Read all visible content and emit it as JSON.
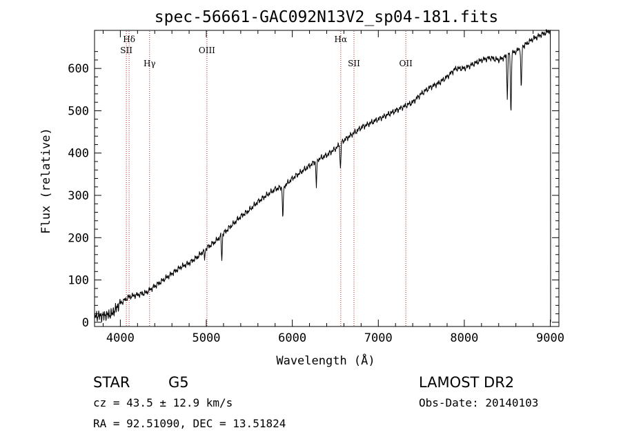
{
  "chart_data": {
    "type": "line",
    "title": "spec-56661-GAC092N13V2_sp04-181.fits",
    "xlabel": "Wavelength (Å)",
    "ylabel": "Flux (relative)",
    "xlim": [
      3700,
      9100
    ],
    "ylim": [
      -10,
      690
    ],
    "xticks": [
      4000,
      5000,
      6000,
      7000,
      8000,
      9000
    ],
    "yticks": [
      0,
      100,
      200,
      300,
      400,
      500,
      600
    ],
    "grid": false,
    "line_color": "#000000",
    "marker_color": "#b22222",
    "series": [
      {
        "x": [
          3700,
          3800,
          3900,
          4000,
          4100,
          4200,
          4300,
          4400,
          4500,
          4600,
          4700,
          4800,
          4900,
          5000,
          5100,
          5200,
          5300,
          5400,
          5500,
          5600,
          5700,
          5800,
          5900,
          6000,
          6100,
          6200,
          6300,
          6400,
          6500,
          6600,
          6700,
          6800,
          6900,
          7000,
          7100,
          7200,
          7300,
          7400,
          7500,
          7600,
          7700,
          7800,
          7900,
          8000,
          8100,
          8200,
          8300,
          8400,
          8500,
          8600,
          8700,
          8800,
          8900,
          9000
        ],
        "y": [
          15,
          15,
          20,
          45,
          60,
          65,
          70,
          85,
          100,
          115,
          130,
          140,
          155,
          175,
          190,
          210,
          230,
          250,
          265,
          285,
          300,
          315,
          320,
          340,
          355,
          370,
          385,
          395,
          410,
          430,
          445,
          460,
          470,
          480,
          490,
          500,
          510,
          520,
          540,
          555,
          565,
          580,
          600,
          600,
          610,
          620,
          625,
          620,
          630,
          640,
          655,
          670,
          680,
          690
        ]
      }
    ],
    "dips": [
      {
        "x": 4980,
        "y": 150
      },
      {
        "x": 5180,
        "y": 145
      },
      {
        "x": 5890,
        "y": 240
      },
      {
        "x": 6280,
        "y": 320
      },
      {
        "x": 6560,
        "y": 360
      },
      {
        "x": 8500,
        "y": 530
      },
      {
        "x": 8542,
        "y": 480
      },
      {
        "x": 8662,
        "y": 540
      }
    ],
    "spectral_lines": [
      {
        "label": "Hδ",
        "x": 4102,
        "tier": 0
      },
      {
        "label": "SII",
        "x": 4070,
        "tier": 1
      },
      {
        "label": "Hγ",
        "x": 4340,
        "tier": 2
      },
      {
        "label": "OIII",
        "x": 5007,
        "tier": 1
      },
      {
        "label": "Hα",
        "x": 6563,
        "tier": 0
      },
      {
        "label": "OII",
        "x": 7320,
        "tier": 2
      },
      {
        "label": "SII",
        "x": 6717,
        "tier": 2
      }
    ]
  },
  "info": {
    "class": "STAR",
    "subclass": "G5",
    "survey": "LAMOST DR2",
    "cz": "cz = 43.5 ± 12.9 km/s",
    "obs_date": "Obs-Date: 20140103",
    "radec": "RA =  92.51090, DEC =  13.51824"
  }
}
